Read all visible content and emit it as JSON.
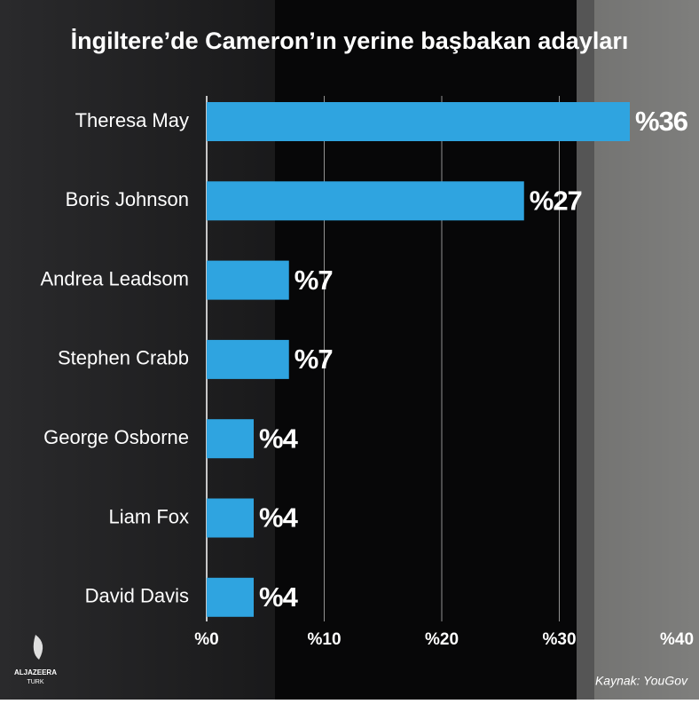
{
  "chart_data": {
    "type": "barh",
    "title": "İngiltere’de Cameron’ın yerine başbakan adayları",
    "categories": [
      "Theresa May",
      "Boris Johnson",
      "Andrea Leadsom",
      "Stephen Crabb",
      "George Osborne",
      "Liam Fox",
      "David Davis"
    ],
    "values": [
      36,
      27,
      7,
      7,
      4,
      4,
      4
    ],
    "value_labels": [
      "%36",
      "%27",
      "%7",
      "%7",
      "%4",
      "%4",
      "%4"
    ],
    "color": "#2fa4e0",
    "xlim": [
      0,
      40
    ],
    "xticks": [
      {
        "value": 0,
        "label": "%0"
      },
      {
        "value": 10,
        "label": "%10"
      },
      {
        "value": 20,
        "label": "%20"
      },
      {
        "value": 30,
        "label": "%30"
      },
      {
        "value": 40,
        "label": "%40"
      }
    ],
    "grid": true,
    "source": "Kaynak: YouGov",
    "logo": [
      "ALJAZEERA",
      "TURK"
    ]
  }
}
